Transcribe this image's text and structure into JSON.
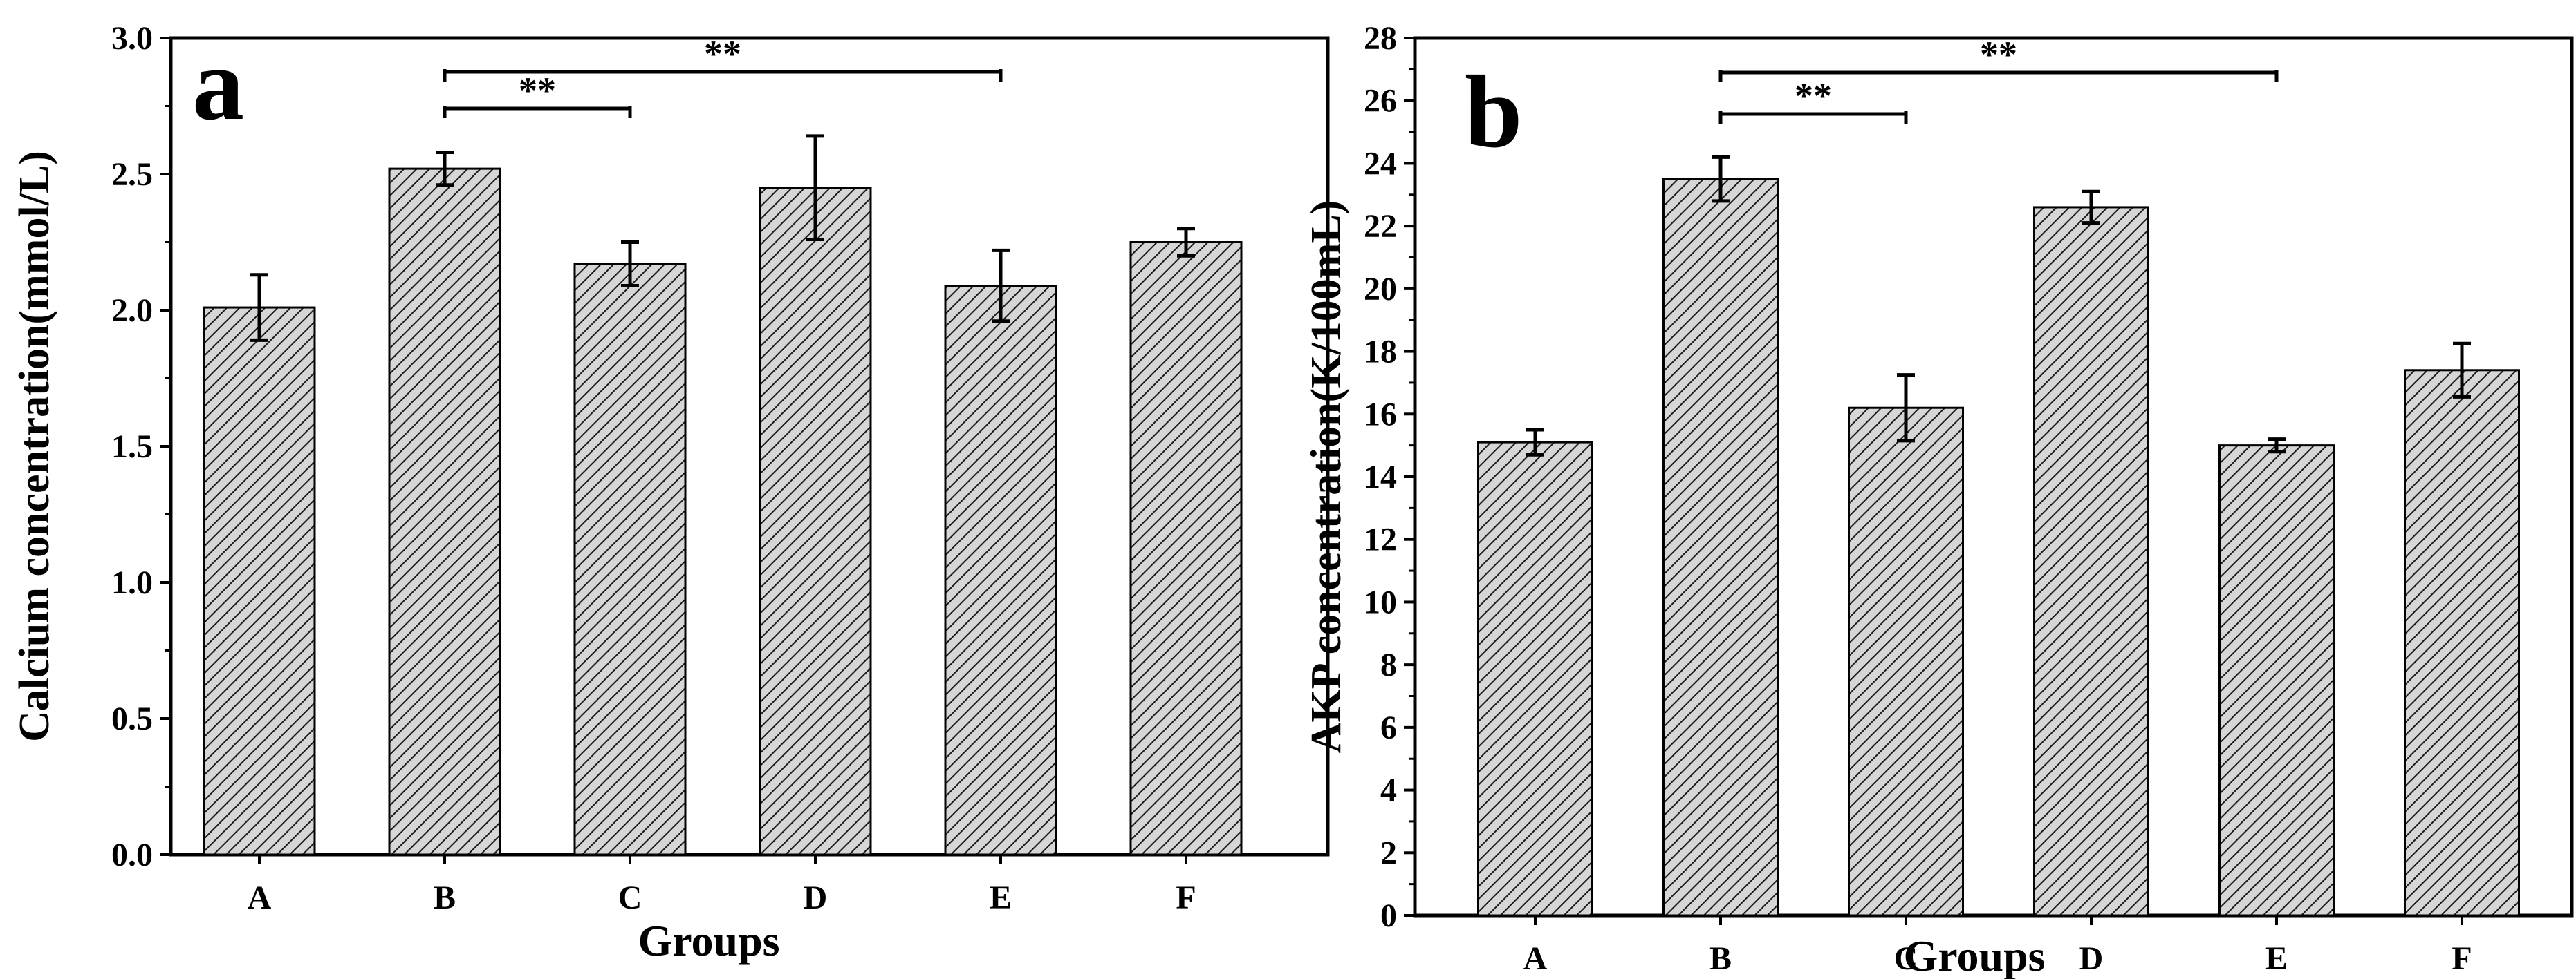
{
  "chart_data": [
    {
      "type": "bar",
      "panel_label": "a",
      "title": "",
      "xlabel": "Groups",
      "ylabel": "Calcium concentration(mmol/L)",
      "categories": [
        "A",
        "B",
        "C",
        "D",
        "E",
        "F"
      ],
      "values": [
        2.01,
        2.52,
        2.17,
        2.45,
        2.09,
        2.25
      ],
      "errors": [
        0.12,
        0.06,
        0.08,
        0.19,
        0.13,
        0.05
      ],
      "ylim": [
        0,
        3.0
      ],
      "yticks": [
        0.0,
        0.5,
        1.0,
        1.5,
        2.0,
        2.5,
        3.0
      ],
      "ytick_labels": [
        "0.0",
        "0.5",
        "1.0",
        "1.5",
        "2.0",
        "2.5",
        "3.0"
      ],
      "significance": [
        {
          "from": "B",
          "to": "C",
          "label": "**"
        },
        {
          "from": "B",
          "to": "E",
          "label": "**"
        }
      ]
    },
    {
      "type": "bar",
      "panel_label": "b",
      "title": "",
      "xlabel": "Groups",
      "ylabel": "AKP concentration(K/100mL)",
      "categories": [
        "A",
        "B",
        "C",
        "D",
        "E",
        "F"
      ],
      "values": [
        15.1,
        23.5,
        16.2,
        22.6,
        15.0,
        17.4
      ],
      "errors": [
        0.4,
        0.7,
        1.05,
        0.5,
        0.2,
        0.85
      ],
      "ylim": [
        0,
        28
      ],
      "yticks": [
        0,
        2,
        4,
        6,
        8,
        10,
        12,
        14,
        16,
        18,
        20,
        22,
        24,
        26,
        28
      ],
      "ytick_labels": [
        "0",
        "2",
        "4",
        "6",
        "8",
        "10",
        "12",
        "14",
        "16",
        "18",
        "20",
        "22",
        "24",
        "26",
        "28"
      ],
      "significance": [
        {
          "from": "B",
          "to": "C",
          "label": "**"
        },
        {
          "from": "B",
          "to": "E",
          "label": "**"
        }
      ]
    }
  ]
}
